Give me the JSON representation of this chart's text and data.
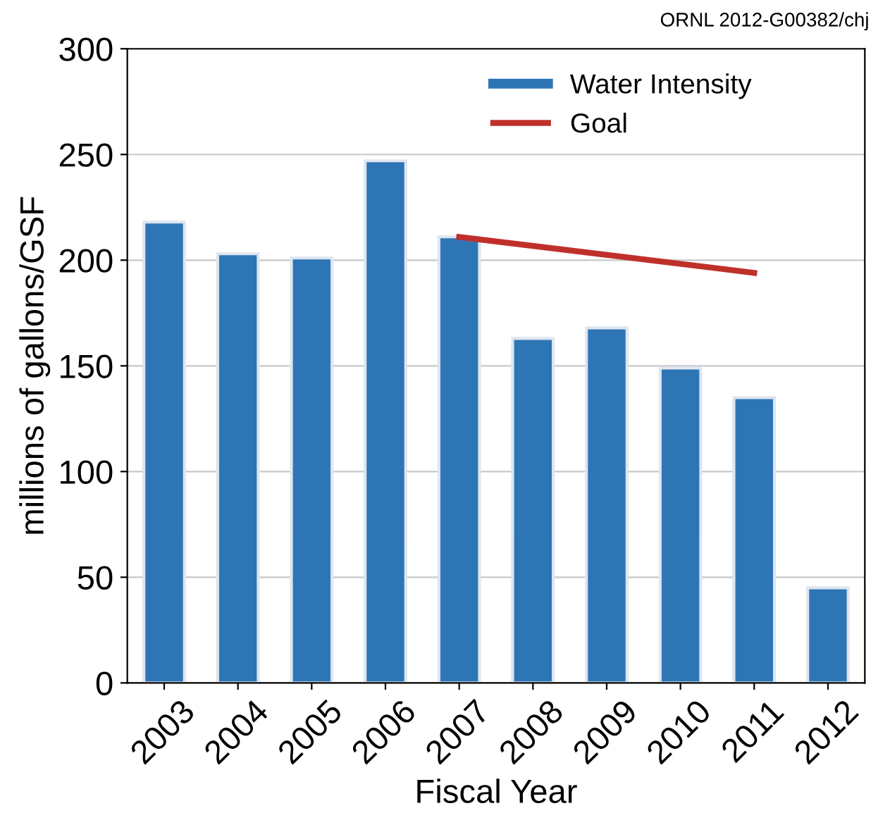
{
  "chart_data": {
    "type": "bar",
    "xlabel": "Fiscal Year",
    "ylabel": "millions of gallons/GSF",
    "categories": [
      "2003",
      "2004",
      "2005",
      "2006",
      "2007",
      "2008",
      "2009",
      "2010",
      "2011",
      "2012"
    ],
    "series": [
      {
        "name": "Water Intensity",
        "color": "#2e75b6",
        "values": [
          218,
          203,
          201,
          247,
          211,
          163,
          168,
          149,
          135,
          45
        ]
      },
      {
        "name": "Goal",
        "type": "line",
        "color": "#c0302b",
        "values": [
          null,
          null,
          null,
          null,
          211,
          null,
          null,
          null,
          194,
          null
        ]
      }
    ],
    "ylim": [
      0,
      300
    ],
    "yticks": [
      0,
      50,
      100,
      150,
      200,
      250,
      300
    ],
    "grid": "y",
    "legend": "top right",
    "annotations": [
      "ORNL 2012-G00382/chj"
    ]
  }
}
